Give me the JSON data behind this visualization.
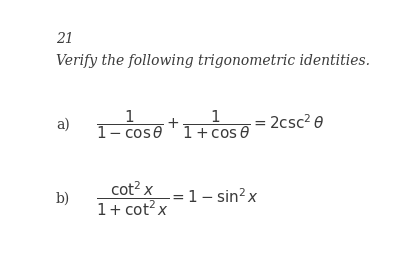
{
  "background_color": "#ffffff",
  "title_number": "21",
  "subtitle": "Verify the following trigonometric identities.",
  "eq_a_label": "a)",
  "eq_a": "$\\dfrac{1}{1-\\cos\\theta}+\\dfrac{1}{1+\\cos\\theta}=2\\csc^{2}\\theta$",
  "eq_b_label": "b)",
  "eq_b": "$\\dfrac{\\cot^{2}x}{1+\\cot^{2}x}=1-\\sin^{2}x$",
  "font_color": "#3a3a3a",
  "title_fontsize": 10,
  "subtitle_fontsize": 10,
  "eq_fontsize": 11,
  "label_fontsize": 10
}
